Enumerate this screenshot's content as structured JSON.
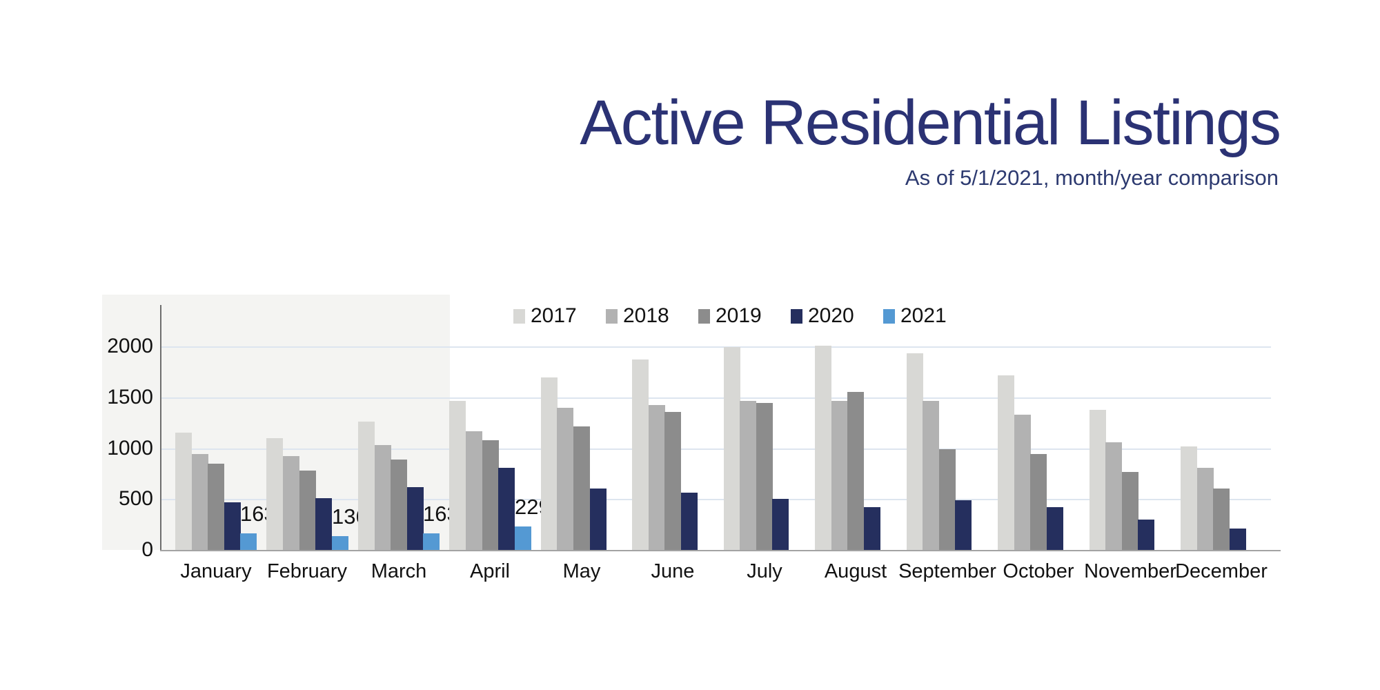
{
  "slide": {
    "title": "Active Residential Listings",
    "subtitle": "As of 5/1/2021, month/year comparison",
    "title_color": "#2b3274"
  },
  "chart_data": {
    "type": "bar",
    "title": "Active Residential Listings",
    "subtitle": "As of 5/1/2021, month/year comparison",
    "categories": [
      "January",
      "February",
      "March",
      "April",
      "May",
      "June",
      "July",
      "August",
      "September",
      "October",
      "November",
      "December"
    ],
    "series": [
      {
        "name": "2017",
        "color": "#d8d8d5",
        "values": [
          1150,
          1100,
          1260,
          1465,
          1695,
          1870,
          1990,
          2010,
          1930,
          1715,
          1375,
          1015
        ]
      },
      {
        "name": "2018",
        "color": "#b2b2b2",
        "values": [
          945,
          920,
          1030,
          1165,
          1400,
          1425,
          1465,
          1465,
          1465,
          1330,
          1055,
          805
        ]
      },
      {
        "name": "2019",
        "color": "#8c8c8c",
        "values": [
          850,
          780,
          890,
          1075,
          1215,
          1355,
          1445,
          1555,
          990,
          945,
          765,
          605
        ]
      },
      {
        "name": "2020",
        "color": "#252f5e",
        "values": [
          465,
          510,
          620,
          810,
          605,
          560,
          505,
          420,
          490,
          420,
          300,
          210
        ]
      },
      {
        "name": "2021",
        "color": "#5499d3",
        "values": [
          163,
          136,
          163,
          229,
          null,
          null,
          null,
          null,
          null,
          null,
          null,
          null
        ],
        "show_data_labels": true
      }
    ],
    "data_labels_2021": [
      "163",
      "136",
      "163",
      "229"
    ],
    "ylim": [
      0,
      2000
    ],
    "yticks": [
      0,
      500,
      1000,
      1500,
      2000
    ],
    "grid": true,
    "gridline_color": "#dde5ef",
    "legend_position": "top",
    "legend_entries": [
      "2017",
      "2018",
      "2019",
      "2020",
      "2021"
    ]
  }
}
